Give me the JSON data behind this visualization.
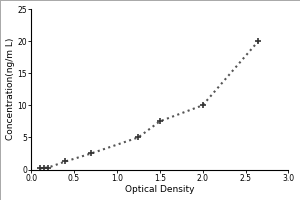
{
  "x": [
    0.1,
    0.15,
    0.2,
    0.4,
    0.7,
    1.25,
    1.5,
    2.0,
    2.65
  ],
  "y": [
    0.16,
    0.25,
    0.31,
    1.25,
    2.5,
    5.0,
    7.5,
    10.0,
    20.0
  ],
  "xlabel": "Optical Density",
  "ylabel": "Concentration(ng/m L)",
  "xlim": [
    0,
    3
  ],
  "ylim": [
    0,
    25
  ],
  "xticks": [
    0,
    0.5,
    1,
    1.5,
    2,
    2.5,
    3
  ],
  "yticks": [
    0,
    5,
    10,
    15,
    20,
    25
  ],
  "marker": "+",
  "marker_color": "#333333",
  "line_style": "dotted",
  "line_color": "#555555",
  "marker_size": 5,
  "marker_edge_width": 1.2,
  "line_width": 1.5,
  "tick_fontsize": 5.5,
  "label_fontsize": 6.5,
  "background_color": "#ffffff",
  "border_color": "#000000",
  "fig_width": 3.0,
  "fig_height": 2.0,
  "dpi": 100
}
